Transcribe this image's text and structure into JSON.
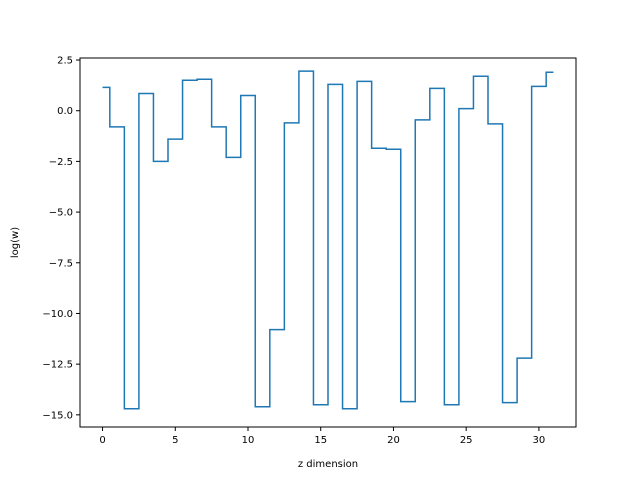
{
  "chart_data": {
    "type": "line",
    "drawstyle": "steps-mid",
    "title": "",
    "xlabel": "z dimension",
    "ylabel": "log(w)",
    "xlim": [
      -1.55,
      32.55
    ],
    "ylim": [
      -15.6,
      2.6
    ],
    "xticks": [
      0,
      5,
      10,
      15,
      20,
      25,
      30
    ],
    "yticks": [
      2.5,
      0.0,
      -2.5,
      -5.0,
      -7.5,
      -10.0,
      -12.5,
      -15.0
    ],
    "xtick_labels": [
      "0",
      "5",
      "10",
      "15",
      "20",
      "25",
      "30"
    ],
    "ytick_labels": [
      "2.5",
      "0.0",
      "−2.5",
      "−5.0",
      "−7.5",
      "−10.0",
      "−12.5",
      "−15.0"
    ],
    "grid": false,
    "line_color": "#1f77b4",
    "series": [
      {
        "x": [
          0,
          1,
          2,
          3,
          4,
          5,
          6,
          7,
          8,
          9,
          10,
          11,
          12,
          13,
          14,
          15,
          16,
          17,
          18,
          19,
          20,
          21,
          22,
          23,
          24,
          25,
          26,
          27,
          28,
          29,
          30,
          31
        ],
        "values": [
          1.15,
          -0.8,
          -14.7,
          0.85,
          -2.5,
          -1.4,
          1.5,
          1.55,
          -0.8,
          -2.3,
          0.75,
          -14.6,
          -10.8,
          -0.6,
          1.95,
          -14.5,
          1.3,
          -14.7,
          1.45,
          -1.85,
          -1.9,
          -14.35,
          -0.45,
          1.1,
          -14.5,
          0.1,
          1.7,
          -0.65,
          -14.4,
          -12.2,
          1.2,
          1.9
        ]
      }
    ]
  }
}
